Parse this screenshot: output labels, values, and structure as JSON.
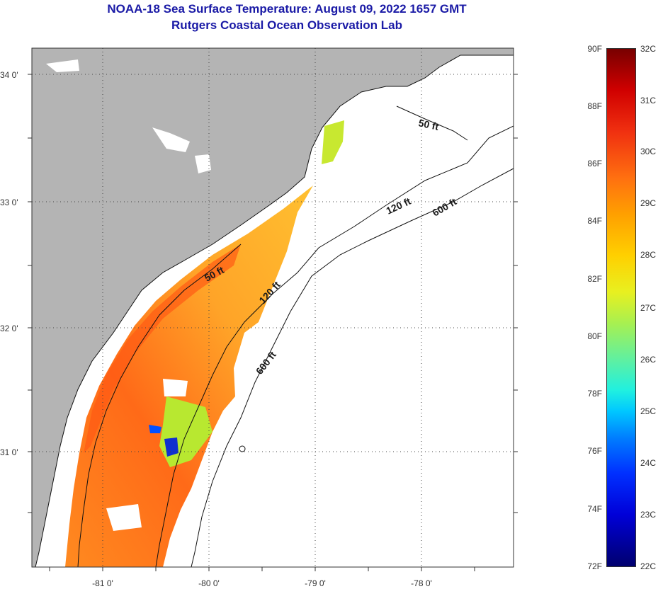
{
  "header": {
    "title": "NOAA-18 Sea Surface Temperature:  August 09, 2022 1657 GMT",
    "subtitle": "Rutgers Coastal Ocean Observation Lab"
  },
  "map": {
    "lat_labels": [
      "34 0'",
      "33 0'",
      "32 0'",
      "31 0'"
    ],
    "lon_labels": [
      "-81 0'",
      "-80 0'",
      "-79 0'",
      "-78 0'"
    ],
    "contour_labels": {
      "ft50_north": "50 ft",
      "ft50_south": "50 ft",
      "ft120_north": "120 ft",
      "ft120_south": "120 ft",
      "ft600_north": "600 ft",
      "ft600_south": "600 ft"
    },
    "colors": {
      "land": "#b4b4b4",
      "no_data": "#ffffff",
      "sst_warm": "#ff8020",
      "sst_mid": "#ffa828"
    }
  },
  "colorbar": {
    "fahrenheit": [
      "90F",
      "88F",
      "86F",
      "84F",
      "82F",
      "80F",
      "78F",
      "76F",
      "74F",
      "72F"
    ],
    "celsius": [
      "32C",
      "31C",
      "30C",
      "29C",
      "28C",
      "27C",
      "26C",
      "25C",
      "24C",
      "23C",
      "22C"
    ]
  }
}
